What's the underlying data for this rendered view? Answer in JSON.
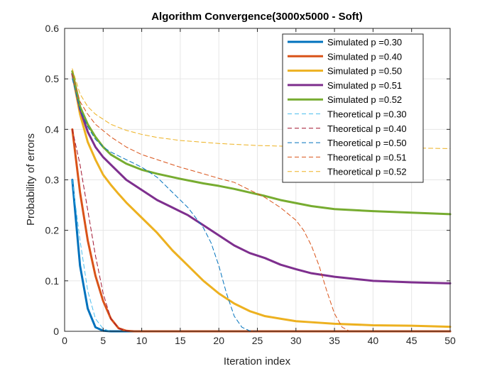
{
  "chart_data": {
    "type": "line",
    "title": "Algorithm Convergence(3000x5000 - Soft)",
    "xlabel": "Iteration index",
    "ylabel": "Probability of errors",
    "xlim": [
      0,
      50
    ],
    "ylim": [
      0,
      0.6
    ],
    "xticks": [
      "0",
      "5",
      "10",
      "15",
      "20",
      "25",
      "30",
      "35",
      "40",
      "45",
      "50"
    ],
    "yticks": [
      "0",
      "0.1",
      "0.2",
      "0.3",
      "0.4",
      "0.5",
      "0.6"
    ],
    "x_tick_values": [
      0,
      5,
      10,
      15,
      20,
      25,
      30,
      35,
      40,
      45,
      50
    ],
    "y_tick_values": [
      0,
      0.1,
      0.2,
      0.3,
      0.4,
      0.5,
      0.6
    ],
    "grid": true,
    "legend_position": "top-right",
    "series": [
      {
        "name": "Simulated p =0.30",
        "style": "solid",
        "color": "#0072BD",
        "points": [
          [
            1,
            0.3
          ],
          [
            2,
            0.13
          ],
          [
            3,
            0.045
          ],
          [
            4,
            0.008
          ],
          [
            5,
            0.001
          ],
          [
            6,
            0
          ],
          [
            8,
            0
          ],
          [
            50,
            0
          ]
        ]
      },
      {
        "name": "Simulated p =0.40",
        "style": "solid",
        "color": "#D95319",
        "points": [
          [
            1,
            0.4
          ],
          [
            2,
            0.275
          ],
          [
            3,
            0.18
          ],
          [
            4,
            0.11
          ],
          [
            5,
            0.06
          ],
          [
            6,
            0.025
          ],
          [
            7,
            0.006
          ],
          [
            8,
            0.001
          ],
          [
            9,
            0
          ],
          [
            50,
            0
          ]
        ]
      },
      {
        "name": "Simulated p =0.50",
        "style": "solid",
        "color": "#EDB120",
        "points": [
          [
            1,
            0.51
          ],
          [
            2,
            0.43
          ],
          [
            3,
            0.375
          ],
          [
            4,
            0.34
          ],
          [
            5,
            0.31
          ],
          [
            6,
            0.29
          ],
          [
            7,
            0.272
          ],
          [
            8,
            0.255
          ],
          [
            10,
            0.225
          ],
          [
            12,
            0.195
          ],
          [
            14,
            0.16
          ],
          [
            16,
            0.13
          ],
          [
            18,
            0.1
          ],
          [
            20,
            0.075
          ],
          [
            22,
            0.055
          ],
          [
            24,
            0.04
          ],
          [
            26,
            0.03
          ],
          [
            28,
            0.025
          ],
          [
            30,
            0.02
          ],
          [
            32,
            0.018
          ],
          [
            35,
            0.015
          ],
          [
            40,
            0.012
          ],
          [
            45,
            0.011
          ],
          [
            50,
            0.009
          ]
        ]
      },
      {
        "name": "Simulated p =0.51",
        "style": "solid",
        "color": "#7E2F8E",
        "points": [
          [
            1,
            0.51
          ],
          [
            2,
            0.44
          ],
          [
            3,
            0.395
          ],
          [
            4,
            0.365
          ],
          [
            5,
            0.345
          ],
          [
            6,
            0.33
          ],
          [
            8,
            0.3
          ],
          [
            10,
            0.28
          ],
          [
            12,
            0.26
          ],
          [
            14,
            0.245
          ],
          [
            16,
            0.23
          ],
          [
            18,
            0.21
          ],
          [
            20,
            0.19
          ],
          [
            22,
            0.17
          ],
          [
            24,
            0.155
          ],
          [
            26,
            0.145
          ],
          [
            28,
            0.132
          ],
          [
            30,
            0.123
          ],
          [
            32,
            0.115
          ],
          [
            35,
            0.108
          ],
          [
            40,
            0.1
          ],
          [
            45,
            0.097
          ],
          [
            50,
            0.095
          ]
        ]
      },
      {
        "name": "Simulated p =0.52",
        "style": "solid",
        "color": "#77AC30",
        "points": [
          [
            1,
            0.515
          ],
          [
            2,
            0.445
          ],
          [
            3,
            0.41
          ],
          [
            4,
            0.385
          ],
          [
            5,
            0.365
          ],
          [
            6,
            0.35
          ],
          [
            8,
            0.332
          ],
          [
            10,
            0.32
          ],
          [
            12,
            0.312
          ],
          [
            15,
            0.302
          ],
          [
            18,
            0.293
          ],
          [
            20,
            0.288
          ],
          [
            22,
            0.282
          ],
          [
            24,
            0.275
          ],
          [
            26,
            0.268
          ],
          [
            28,
            0.26
          ],
          [
            30,
            0.254
          ],
          [
            32,
            0.248
          ],
          [
            35,
            0.242
          ],
          [
            40,
            0.238
          ],
          [
            45,
            0.235
          ],
          [
            50,
            0.232
          ]
        ]
      },
      {
        "name": "Theoretical p =0.30",
        "style": "dashed",
        "color": "#4DBEEE",
        "points": [
          [
            1,
            0.3
          ],
          [
            2,
            0.18
          ],
          [
            3,
            0.08
          ],
          [
            4,
            0.025
          ],
          [
            5,
            0.005
          ],
          [
            6,
            0
          ],
          [
            50,
            0
          ]
        ]
      },
      {
        "name": "Theoretical p =0.40",
        "style": "dashed",
        "color": "#A2142F",
        "points": [
          [
            1,
            0.4
          ],
          [
            2,
            0.33
          ],
          [
            3,
            0.24
          ],
          [
            4,
            0.15
          ],
          [
            5,
            0.075
          ],
          [
            6,
            0.025
          ],
          [
            7,
            0.006
          ],
          [
            8,
            0.001
          ],
          [
            9,
            0
          ],
          [
            50,
            0
          ]
        ]
      },
      {
        "name": "Theoretical p =0.50",
        "style": "dashed",
        "color": "#0072BD",
        "points": [
          [
            1,
            0.5
          ],
          [
            2,
            0.44
          ],
          [
            3,
            0.405
          ],
          [
            4,
            0.38
          ],
          [
            5,
            0.365
          ],
          [
            6,
            0.355
          ],
          [
            8,
            0.34
          ],
          [
            10,
            0.325
          ],
          [
            12,
            0.305
          ],
          [
            14,
            0.275
          ],
          [
            16,
            0.245
          ],
          [
            18,
            0.205
          ],
          [
            19,
            0.175
          ],
          [
            20,
            0.13
          ],
          [
            21,
            0.075
          ],
          [
            22,
            0.03
          ],
          [
            23,
            0.008
          ],
          [
            24,
            0.001
          ],
          [
            25,
            0
          ],
          [
            50,
            0
          ]
        ]
      },
      {
        "name": "Theoretical p =0.51",
        "style": "dashed",
        "color": "#D95319",
        "points": [
          [
            1,
            0.51
          ],
          [
            2,
            0.455
          ],
          [
            3,
            0.43
          ],
          [
            4,
            0.41
          ],
          [
            6,
            0.385
          ],
          [
            8,
            0.365
          ],
          [
            10,
            0.35
          ],
          [
            12,
            0.34
          ],
          [
            15,
            0.325
          ],
          [
            18,
            0.312
          ],
          [
            20,
            0.303
          ],
          [
            22,
            0.295
          ],
          [
            24,
            0.28
          ],
          [
            26,
            0.265
          ],
          [
            28,
            0.245
          ],
          [
            30,
            0.22
          ],
          [
            31,
            0.2
          ],
          [
            32,
            0.17
          ],
          [
            33,
            0.13
          ],
          [
            34,
            0.08
          ],
          [
            35,
            0.035
          ],
          [
            36,
            0.008
          ],
          [
            37,
            0
          ],
          [
            50,
            0
          ]
        ]
      },
      {
        "name": "Theoretical p =0.52",
        "style": "dashed",
        "color": "#EDB120",
        "points": [
          [
            1,
            0.52
          ],
          [
            2,
            0.47
          ],
          [
            3,
            0.445
          ],
          [
            4,
            0.43
          ],
          [
            6,
            0.41
          ],
          [
            8,
            0.398
          ],
          [
            10,
            0.39
          ],
          [
            12,
            0.384
          ],
          [
            15,
            0.378
          ],
          [
            20,
            0.372
          ],
          [
            25,
            0.368
          ],
          [
            30,
            0.366
          ],
          [
            35,
            0.365
          ],
          [
            40,
            0.364
          ],
          [
            45,
            0.363
          ],
          [
            50,
            0.362
          ]
        ]
      }
    ]
  }
}
